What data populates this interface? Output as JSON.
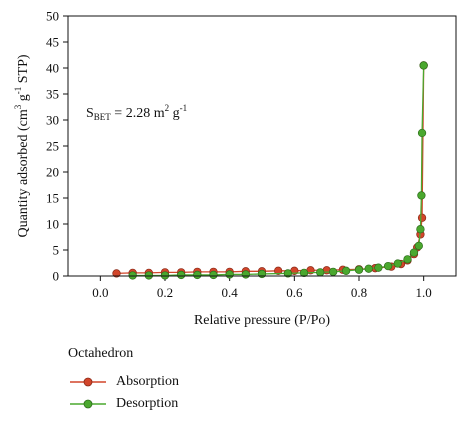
{
  "chart_data": {
    "type": "line",
    "xlabel": "Relative pressure (P/Po)",
    "ylabel_parts": {
      "main": "Quantity adsorbed (cm",
      "sup1": "3",
      "mid": " g",
      "sup2": "-1",
      "end": " STP)"
    },
    "xlim": [
      -0.1,
      1.1
    ],
    "ylim": [
      0,
      50
    ],
    "xticks": [
      0.0,
      0.2,
      0.4,
      0.6,
      0.8,
      1.0
    ],
    "xtick_labels": [
      "0.0",
      "0.2",
      "0.4",
      "0.6",
      "0.8",
      "1.0"
    ],
    "yticks": [
      0,
      5,
      10,
      15,
      20,
      25,
      30,
      35,
      40,
      45,
      50
    ],
    "ytick_labels": [
      "0",
      "5",
      "10",
      "15",
      "20",
      "25",
      "30",
      "35",
      "40",
      "45",
      "50"
    ],
    "annotation": {
      "s": "S",
      "s_sub": "BET",
      "value": " = 2.28 m",
      "sup": "2",
      "unit": " g",
      "sup2": "-1"
    },
    "legend_title": "Octahedron",
    "series": [
      {
        "name": "Absorption",
        "color": "#d2452a",
        "points": [
          [
            0.05,
            0.5
          ],
          [
            0.1,
            0.6
          ],
          [
            0.15,
            0.6
          ],
          [
            0.2,
            0.7
          ],
          [
            0.25,
            0.7
          ],
          [
            0.3,
            0.8
          ],
          [
            0.35,
            0.8
          ],
          [
            0.4,
            0.8
          ],
          [
            0.45,
            0.9
          ],
          [
            0.5,
            0.9
          ],
          [
            0.55,
            1.0
          ],
          [
            0.6,
            1.0
          ],
          [
            0.65,
            1.1
          ],
          [
            0.7,
            1.1
          ],
          [
            0.75,
            1.2
          ],
          [
            0.8,
            1.3
          ],
          [
            0.85,
            1.5
          ],
          [
            0.9,
            1.8
          ],
          [
            0.93,
            2.3
          ],
          [
            0.95,
            3.0
          ],
          [
            0.97,
            4.2
          ],
          [
            0.98,
            5.5
          ],
          [
            0.99,
            8.0
          ],
          [
            0.995,
            11.2
          ],
          [
            1.0,
            40.5
          ]
        ]
      },
      {
        "name": "Desorption",
        "color": "#4aa82e",
        "points": [
          [
            1.0,
            40.5
          ],
          [
            0.995,
            27.5
          ],
          [
            0.993,
            15.5
          ],
          [
            0.99,
            9.0
          ],
          [
            0.985,
            5.8
          ],
          [
            0.97,
            4.5
          ],
          [
            0.95,
            3.2
          ],
          [
            0.92,
            2.4
          ],
          [
            0.89,
            1.9
          ],
          [
            0.86,
            1.6
          ],
          [
            0.83,
            1.4
          ],
          [
            0.8,
            1.2
          ],
          [
            0.76,
            1.0
          ],
          [
            0.72,
            0.8
          ],
          [
            0.68,
            0.7
          ],
          [
            0.63,
            0.6
          ],
          [
            0.58,
            0.5
          ],
          [
            0.5,
            0.4
          ],
          [
            0.45,
            0.3
          ],
          [
            0.4,
            0.3
          ],
          [
            0.35,
            0.2
          ],
          [
            0.3,
            0.2
          ],
          [
            0.25,
            0.2
          ],
          [
            0.2,
            0.1
          ],
          [
            0.15,
            0.1
          ],
          [
            0.1,
            0.1
          ]
        ]
      }
    ]
  }
}
